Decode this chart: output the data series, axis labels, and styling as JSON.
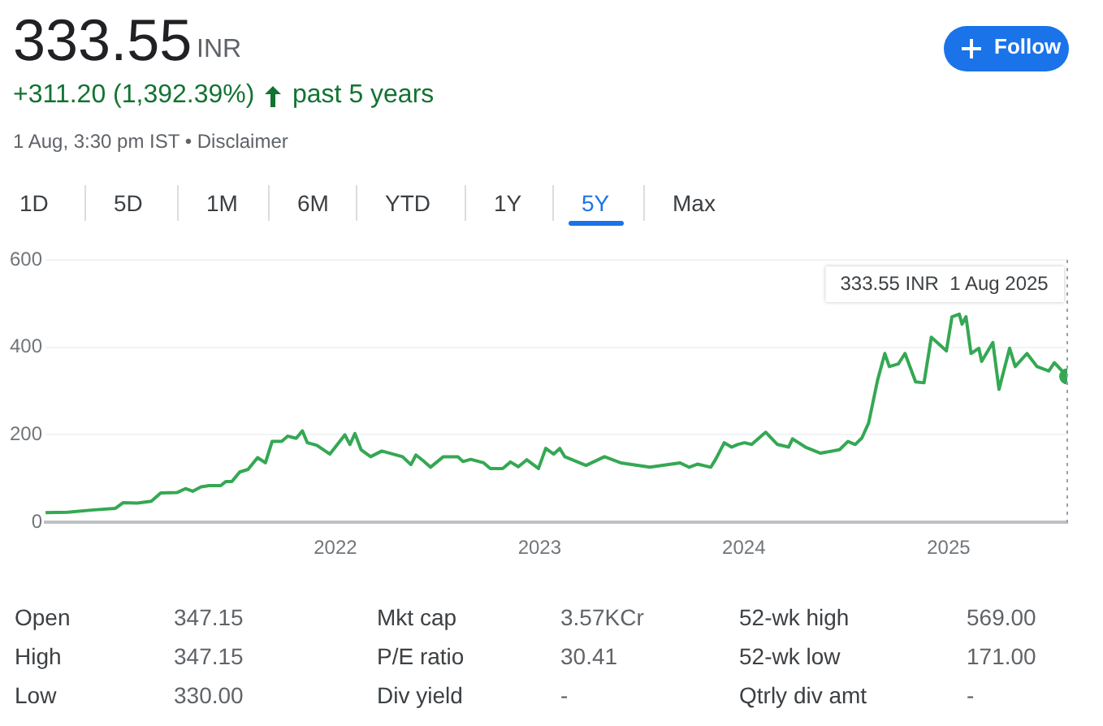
{
  "chart_data": {
    "type": "line",
    "grid": "y",
    "ylim": [
      0,
      600
    ],
    "yticks": [
      0,
      200,
      400,
      600
    ],
    "xlim": [
      "2020-08-01",
      "2025-08-01"
    ],
    "xticks": [
      {
        "value": "2022",
        "label": "2022"
      },
      {
        "value": "2023",
        "label": "2023"
      },
      {
        "value": "2024",
        "label": "2024"
      },
      {
        "value": "2025",
        "label": "2025"
      }
    ],
    "ref_lines": [
      {
        "axis": "x",
        "value": "2025-08-01",
        "line_style": "dotted",
        "color": "#9aa0a6"
      }
    ],
    "series": [
      {
        "color": "#34a853",
        "x": [
          "2020-08-01",
          "2020-09-10",
          "2020-10-22",
          "2020-12-04",
          "2020-12-18",
          "2021-01-12",
          "2021-02-06",
          "2021-02-23",
          "2021-03-24",
          "2021-04-08",
          "2021-04-21",
          "2021-05-06",
          "2021-05-20",
          "2021-06-10",
          "2021-06-19",
          "2021-06-30",
          "2021-07-14",
          "2021-07-29",
          "2021-08-15",
          "2021-08-29",
          "2021-09-10",
          "2021-09-27",
          "2021-10-08",
          "2021-10-23",
          "2021-11-03",
          "2021-11-12",
          "2021-11-29",
          "2021-12-22",
          "2022-01-18",
          "2022-01-27",
          "2022-02-05",
          "2022-02-16",
          "2022-03-05",
          "2022-03-25",
          "2022-05-01",
          "2022-05-16",
          "2022-05-25",
          "2022-06-06",
          "2022-06-20",
          "2022-07-13",
          "2022-08-08",
          "2022-08-17",
          "2022-08-31",
          "2022-09-23",
          "2022-10-05",
          "2022-10-27",
          "2022-11-10",
          "2022-11-24",
          "2022-12-09",
          "2022-12-30",
          "2023-01-12",
          "2023-01-26",
          "2023-02-06",
          "2023-02-15",
          "2023-03-25",
          "2023-04-27",
          "2023-05-26",
          "2023-07-17",
          "2023-09-09",
          "2023-09-25",
          "2023-10-10",
          "2023-11-03",
          "2023-11-12",
          "2023-11-27",
          "2023-12-10",
          "2023-12-21",
          "2024-01-02",
          "2024-01-15",
          "2024-02-09",
          "2024-03-01",
          "2024-03-21",
          "2024-03-28",
          "2024-04-20",
          "2024-05-17",
          "2024-06-20",
          "2024-07-05",
          "2024-07-18",
          "2024-07-30",
          "2024-08-11",
          "2024-08-27",
          "2024-09-09",
          "2024-09-17",
          "2024-10-03",
          "2024-10-15",
          "2024-11-03",
          "2024-11-18",
          "2024-12-01",
          "2024-12-28",
          "2025-01-07",
          "2025-01-20",
          "2025-01-25",
          "2025-02-01",
          "2025-02-10",
          "2025-02-24",
          "2025-03-01",
          "2025-03-21",
          "2025-04-01",
          "2025-04-20",
          "2025-04-30",
          "2025-05-21",
          "2025-06-08",
          "2025-06-29",
          "2025-07-09",
          "2025-08-01"
        ],
        "values": [
          22,
          23,
          28,
          32,
          45,
          44,
          48,
          67,
          68,
          77,
          71,
          81,
          84,
          84,
          93,
          93,
          115,
          121,
          148,
          136,
          185,
          185,
          197,
          192,
          209,
          182,
          176,
          156,
          200,
          178,
          203,
          166,
          150,
          163,
          150,
          132,
          154,
          142,
          126,
          150,
          150,
          139,
          144,
          136,
          123,
          123,
          138,
          127,
          143,
          123,
          169,
          156,
          169,
          150,
          130,
          150,
          136,
          126,
          136,
          126,
          133,
          126,
          145,
          182,
          172,
          178,
          182,
          178,
          206,
          178,
          172,
          191,
          172,
          158,
          166,
          185,
          178,
          193,
          227,
          325,
          386,
          356,
          362,
          386,
          321,
          319,
          423,
          392,
          470,
          476,
          453,
          470,
          386,
          398,
          368,
          411,
          304,
          398,
          356,
          386,
          356,
          346,
          365,
          333.55
        ]
      },
      {
        "type": "scatter",
        "color": "#34a853",
        "x": [
          "2025-08-01"
        ],
        "values": [
          333.55
        ]
      }
    ],
    "annotations": [
      "333.55",
      "INR",
      "+311.20 (1,392.39%)",
      "past 5 years",
      "1 Aug, 3:30 pm IST • Disclaimer",
      "Follow",
      "1D",
      "5D",
      "1M",
      "6M",
      "YTD",
      "1Y",
      "5Y",
      "Max",
      "Open",
      "347.15",
      "Mkt cap",
      "3.57KCr",
      "52-wk high",
      "569.00",
      "High",
      "347.15",
      "P/E ratio",
      "30.41",
      "52-wk low",
      "171.00",
      "Low",
      "330.00",
      "Div yield",
      "-",
      "Qtrly div amt",
      "-",
      "333.55 INR  1 Aug 2025"
    ]
  }
}
